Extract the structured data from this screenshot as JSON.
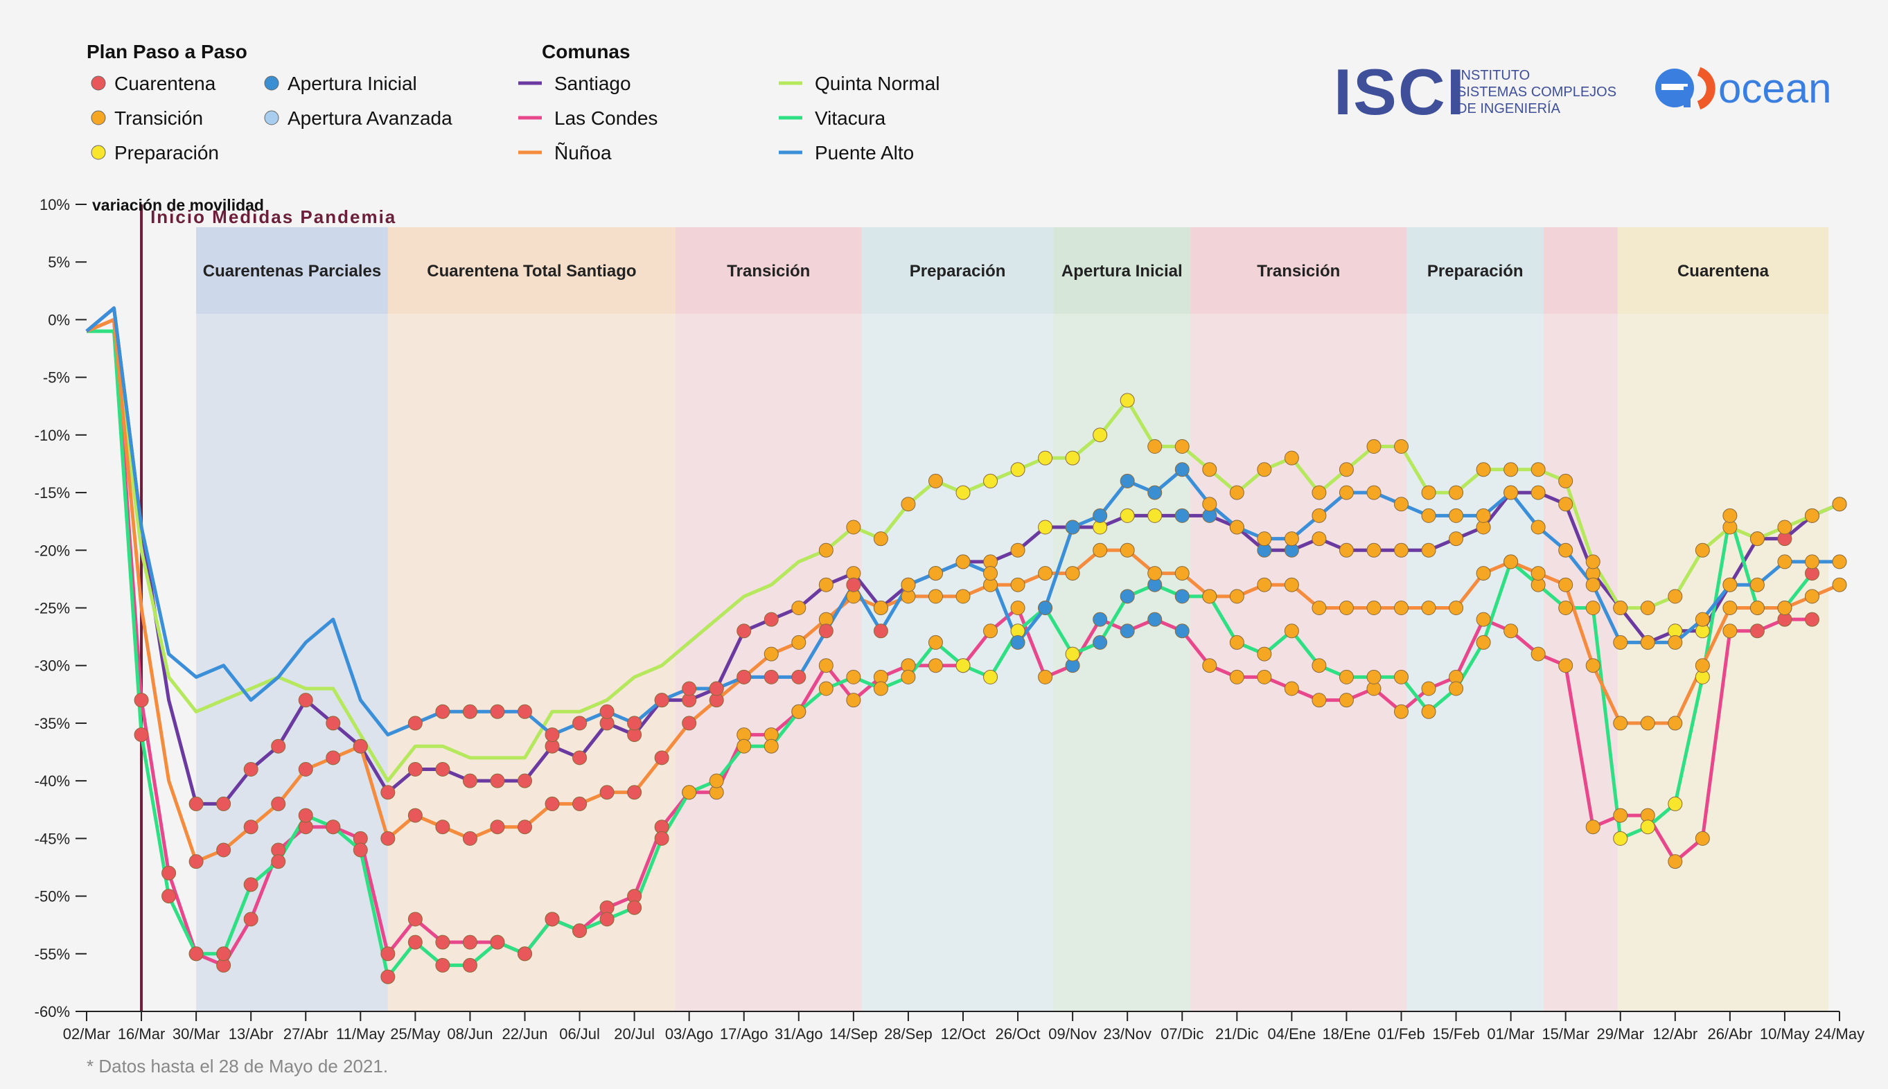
{
  "legend_plan": {
    "title": "Plan Paso a Paso",
    "items": [
      {
        "label": "Cuarentena",
        "color": "#e8585a"
      },
      {
        "label": "Apertura Inicial",
        "color": "#3a8fd2"
      },
      {
        "label": "Transición",
        "color": "#f5a623"
      },
      {
        "label": "Apertura Avanzada",
        "color": "#a8cdee"
      },
      {
        "label": "Preparación",
        "color": "#f7e62b"
      }
    ]
  },
  "legend_comunas": {
    "title": "Comunas",
    "items": [
      {
        "label": "Santiago",
        "color": "#6a3aa0"
      },
      {
        "label": "Quinta Normal",
        "color": "#b5e85c"
      },
      {
        "label": "Las Condes",
        "color": "#e8478c"
      },
      {
        "label": "Vitacura",
        "color": "#2ee083"
      },
      {
        "label": "Ñuñoa",
        "color": "#f58b3c"
      },
      {
        "label": "Puente Alto",
        "color": "#3a8fd8"
      }
    ]
  },
  "logos": {
    "isci": {
      "mark": "ISCI",
      "line1": "INSTITUTO",
      "line2": "SISTEMAS COMPLEJOS",
      "line3": "DE INGENIERÍA",
      "color": "#3f4f9a"
    },
    "ocean": {
      "text": "ocean",
      "color": "#3a7fe0",
      "accent": "#f05a28"
    }
  },
  "footnote": "* Datos hasta el 28 de Mayo de 2021.",
  "chart_data": {
    "type": "line",
    "ylabel": "variación de movilidad",
    "ylim": [
      -60,
      10
    ],
    "yticks": [
      10,
      5,
      0,
      -5,
      -10,
      -15,
      -20,
      -25,
      -30,
      -35,
      -40,
      -45,
      -50,
      -55,
      -60
    ],
    "ytick_labels": [
      "10%",
      "5%",
      "0%",
      "-5%",
      "-10%",
      "-15%",
      "-20%",
      "-25%",
      "-30%",
      "-35%",
      "-40%",
      "-45%",
      "-50%",
      "-55%",
      "-60%"
    ],
    "x_labels": [
      "02/Mar",
      "16/Mar",
      "30/Mar",
      "13/Abr",
      "27/Abr",
      "11/May",
      "25/May",
      "08/Jun",
      "22/Jun",
      "06/Jul",
      "20/Jul",
      "03/Ago",
      "17/Ago",
      "31/Ago",
      "14/Sep",
      "28/Sep",
      "12/Oct",
      "26/Oct",
      "09/Nov",
      "23/Nov",
      "07/Dic",
      "21/Dic",
      "04/Ene",
      "18/Ene",
      "01/Feb",
      "15/Feb",
      "01/Mar",
      "15/Mar",
      "29/Mar",
      "12/Abr",
      "26/Abr",
      "10/May",
      "24/May"
    ],
    "event": {
      "label": "Inicio Medidas Pandemia",
      "week": 2,
      "color": "#6b1f3a"
    },
    "phases": [
      {
        "label": "Cuarentenas Parciales",
        "start": 4,
        "end": 11,
        "color": "#c8d5e8"
      },
      {
        "label": "Cuarentena Total Santiago",
        "start": 11,
        "end": 21.5,
        "color": "#f5dcc4"
      },
      {
        "label": "Transición",
        "start": 21.5,
        "end": 28.3,
        "color": "#f2d0d4"
      },
      {
        "label": "Preparación",
        "start": 28.3,
        "end": 35.3,
        "color": "#d5e6ea"
      },
      {
        "label": "Apertura Inicial",
        "start": 35.3,
        "end": 40.3,
        "color": "#d2e6d6"
      },
      {
        "label": "Transición",
        "start": 40.3,
        "end": 48.2,
        "color": "#f2d0d4"
      },
      {
        "label": "Preparación",
        "start": 48.2,
        "end": 53.2,
        "color": "#d5e6ea"
      },
      {
        "label": "",
        "start": 53.2,
        "end": 55.9,
        "color": "#f2d0d4"
      },
      {
        "label": "Cuarentena",
        "start": 55.9,
        "end": 63.6,
        "color": "#f3e7c8"
      }
    ],
    "phase_colors": {
      "C": "#e8585a",
      "T": "#f5a623",
      "P": "#f7e62b",
      "A": "#3a8fd2",
      "N": "#cccccc"
    },
    "series": [
      {
        "name": "Santiago",
        "color": "#6a3aa0",
        "values": [
          -1,
          1,
          -18,
          -33,
          -42,
          -42,
          -39,
          -37,
          -33,
          -35,
          -37,
          -41,
          -39,
          -39,
          -40,
          -40,
          -40,
          -37,
          -38,
          -35,
          -36,
          -33,
          -33,
          -32,
          -27,
          -26,
          -25,
          -23,
          -22,
          -25,
          -23,
          -22,
          -21,
          -21,
          -20,
          -18,
          -18,
          -18,
          -17,
          -17,
          -17,
          -17,
          -18,
          -20,
          -20,
          -19,
          -20,
          -20,
          -20,
          -20,
          -19,
          -18,
          -15,
          -15,
          -16,
          -22,
          -25,
          -28,
          -27,
          -27,
          -23,
          -19,
          -19,
          -17,
          -16
        ],
        "phases": "NNNNCCCCCCCCCCCCCCCCCCCCCCTTTTTTTTTPPPPPAAAAATTTTTTTTTTTPPPPPCCCCCCCCCCCCT"
      },
      {
        "name": "Quinta Normal",
        "color": "#b5e85c",
        "values": [
          -1,
          -1,
          -20,
          -31,
          -34,
          -33,
          -32,
          -31,
          -32,
          -32,
          -36,
          -40,
          -37,
          -37,
          -38,
          -38,
          -38,
          -34,
          -34,
          -33,
          -31,
          -30,
          -28,
          -26,
          -24,
          -23,
          -21,
          -20,
          -18,
          -19,
          -16,
          -14,
          -15,
          -14,
          -13,
          -12,
          -12,
          -10,
          -7,
          -11,
          -11,
          -13,
          -15,
          -13,
          -12,
          -15,
          -13,
          -11,
          -11,
          -15,
          -15,
          -13,
          -13,
          -13,
          -14,
          -21,
          -25,
          -25,
          -24,
          -20,
          -18,
          -19,
          -18,
          -17,
          -16
        ],
        "phases": "NNNNNNNNNNNNNNNNNNNNNNNNNNNTTTTTPPPPPPPTTTTTTTTTTTTTTTTTTTTTTTTTTTTTTTT"
      },
      {
        "name": "Las Condes",
        "color": "#e8478c",
        "values": [
          -1,
          0,
          -33,
          -48,
          -55,
          -56,
          -52,
          -46,
          -44,
          -44,
          -45,
          -55,
          -52,
          -54,
          -54,
          -54,
          -55,
          -52,
          -53,
          -51,
          -50,
          -44,
          -41,
          -41,
          -36,
          -36,
          -34,
          -30,
          -33,
          -31,
          -30,
          -30,
          -30,
          -27,
          -25,
          -31,
          -30,
          -26,
          -27,
          -26,
          -27,
          -30,
          -31,
          -31,
          -32,
          -33,
          -33,
          -32,
          -34,
          -32,
          -31,
          -26,
          -27,
          -29,
          -30,
          -44,
          -43,
          -43,
          -47,
          -45,
          -27,
          -27,
          -26,
          -26
        ],
        "phases": "NNCCCCCCCCCCCCCCCCCCCCTTTTTTTTTTTTTTAAAAATTTTTTTTTTTTTTTTTTTTCCCCCTTTTT"
      },
      {
        "name": "Vitacura",
        "color": "#2ee083",
        "values": [
          -1,
          -1,
          -36,
          -50,
          -55,
          -55,
          -49,
          -47,
          -43,
          -44,
          -46,
          -57,
          -54,
          -56,
          -56,
          -54,
          -55,
          -52,
          -53,
          -52,
          -51,
          -45,
          -41,
          -40,
          -37,
          -37,
          -34,
          -32,
          -31,
          -32,
          -31,
          -28,
          -30,
          -31,
          -27,
          -25,
          -29,
          -28,
          -24,
          -23,
          -24,
          -24,
          -28,
          -29,
          -27,
          -30,
          -31,
          -31,
          -31,
          -34,
          -32,
          -28,
          -21,
          -23,
          -25,
          -25,
          -45,
          -44,
          -42,
          -31,
          -17,
          -25,
          -25,
          -22
        ],
        "phases": "NNCCCCCCCCCCCCCCCCCCCCTTTTTTTTTTPPPPPAAAAATTTTTTTTTTTTTTPPPPTCCCCCTTTTT"
      },
      {
        "name": "Ñuñoa",
        "color": "#f58b3c",
        "values": [
          -1,
          0,
          -25,
          -40,
          -47,
          -46,
          -44,
          -42,
          -39,
          -38,
          -37,
          -45,
          -43,
          -44,
          -45,
          -44,
          -44,
          -42,
          -42,
          -41,
          -41,
          -38,
          -35,
          -33,
          -31,
          -29,
          -28,
          -26,
          -24,
          -25,
          -24,
          -24,
          -24,
          -23,
          -23,
          -22,
          -22,
          -20,
          -20,
          -22,
          -22,
          -24,
          -24,
          -23,
          -23,
          -25,
          -25,
          -25,
          -25,
          -25,
          -25,
          -22,
          -21,
          -22,
          -23,
          -30,
          -35,
          -35,
          -35,
          -30,
          -25,
          -25,
          -25,
          -24,
          -23
        ],
        "phases": "NNNNCCCCCCCCCCCCCCCCCCCCCTTTTTTTTTTTTTTTTTTTTTTTTTTTTTTTTTTTTTTTTTTTTTTT"
      },
      {
        "name": "Puente Alto",
        "color": "#3a8fd8",
        "values": [
          -1,
          1,
          -18,
          -29,
          -31,
          -30,
          -33,
          -31,
          -28,
          -26,
          -33,
          -36,
          -35,
          -34,
          -34,
          -34,
          -34,
          -36,
          -35,
          -34,
          -35,
          -33,
          -32,
          -32,
          -31,
          -31,
          -31,
          -27,
          -23,
          -27,
          -23,
          -22,
          -21,
          -22,
          -28,
          -25,
          -18,
          -17,
          -14,
          -15,
          -13,
          -16,
          -18,
          -19,
          -19,
          -17,
          -15,
          -15,
          -16,
          -17,
          -17,
          -17,
          -15,
          -18,
          -20,
          -23,
          -28,
          -28,
          -28,
          -26,
          -23,
          -23,
          -21,
          -21,
          -21
        ],
        "phases": "NNNNNNNNNNNNCCCCCCCCCCCCCCCCCCTTTTAAAAAAATTTTTTTTTTTTTTTTTTTTTTTTTTTTT"
      }
    ]
  }
}
